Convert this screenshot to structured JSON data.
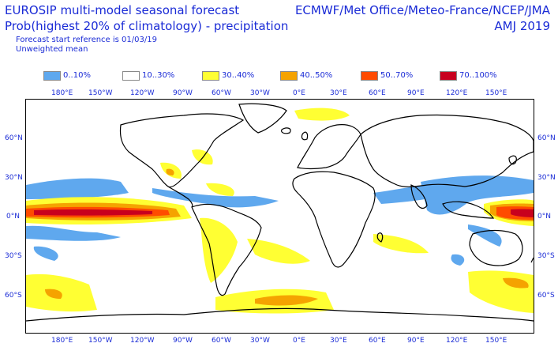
{
  "header": {
    "title_line1": "EUROSIP multi-model seasonal forecast",
    "title_line2": "Prob(highest 20% of climatology) - precipitation",
    "forecast_ref": "Forecast start reference is 01/03/19",
    "mean_type": "Unweighted mean",
    "centres": "ECMWF/Met Office/Meteo-France/NCEP/JMA",
    "season": "AMJ 2019"
  },
  "legend": [
    {
      "label": "0..10%",
      "color": "#5fa8ee"
    },
    {
      "label": "10..30%",
      "color": "#ffffff"
    },
    {
      "label": "30..40%",
      "color": "#ffff33"
    },
    {
      "label": "40..50%",
      "color": "#f5a300"
    },
    {
      "label": "50..70%",
      "color": "#ff4b00"
    },
    {
      "label": "70..100%",
      "color": "#c8001e"
    }
  ],
  "axes": {
    "lon_top": [
      "180°E",
      "150°W",
      "120°W",
      "90°W",
      "60°W",
      "30°W",
      "0°E",
      "30°E",
      "60°E",
      "90°E",
      "120°E",
      "150°E"
    ],
    "lon_bottom": [
      "180°E",
      "150°W",
      "120°W",
      "90°W",
      "60°W",
      "30°W",
      "0°E",
      "30°E",
      "60°E",
      "90°E",
      "120°E",
      "150°E"
    ],
    "lat_left": [
      "60°N",
      "30°N",
      "0°N",
      "30°S",
      "60°S"
    ],
    "lat_right": [
      "60°N",
      "30°N",
      "0°N",
      "30°S",
      "60°S"
    ]
  },
  "map": {
    "ocean_color": "#ffffff",
    "coast_color": "#000000"
  }
}
